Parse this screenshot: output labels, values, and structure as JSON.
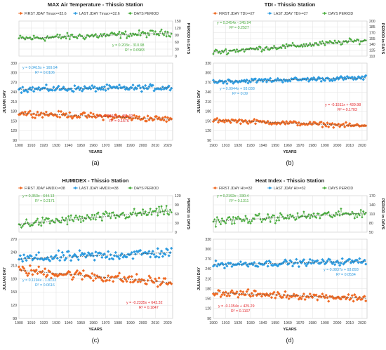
{
  "colors": {
    "first": "#ef6a24",
    "last": "#2d9be0",
    "days": "#4aac3e",
    "grid": "#e2e2e2",
    "trend": "#555555",
    "eq_red": "#e3262b"
  },
  "chart_data": [
    {
      "type": "scatter",
      "title": "MAX Air Temperature - Thissio Station",
      "caption": "(a)",
      "xlabel": "YEARS",
      "ylabel_left": "JULIAN DAY",
      "ylabel_right": "PERIOD in DAYS",
      "legend": [
        "FIRST JDAY Tmax>=32.6",
        "LAST JDAY Tmax>=32.6",
        "DAYS PERIOD"
      ],
      "x_ticks": [
        "1900",
        "1910",
        "1920",
        "1930",
        "1940",
        "1950",
        "1960",
        "1970",
        "1980",
        "1990",
        "2000",
        "2010",
        "2020"
      ],
      "xlim": [
        1900,
        2024
      ],
      "days_ylim": [
        0,
        150
      ],
      "days_ticks": [
        "0",
        "30",
        "60",
        "90",
        "120",
        "150"
      ],
      "jday_ylim": [
        90,
        330
      ],
      "jday_ticks": [
        "90",
        "120",
        "150",
        "180",
        "210",
        "240",
        "270",
        "300",
        "330"
      ],
      "days_trend": [
        0.203,
        -310.98
      ],
      "days_eq": "y = 0.203x - 310.98",
      "days_r2": "R² = 0.0983",
      "last_trend": [
        0.0415,
        169.94
      ],
      "last_eq": "y = 0.0415x + 169.94",
      "last_r2": "R² = 0.0106",
      "first_trend": [
        -0.1616,
        481.93
      ],
      "first_eq": "y = -0.1616x + 481.93",
      "first_r2": "R² = 0.1576",
      "noise": [
        22,
        14,
        14
      ]
    },
    {
      "type": "scatter",
      "title": "TDI - Thissio Station",
      "caption": "(b)",
      "xlabel": "YEARS",
      "ylabel_left": "JULIAN DAY",
      "ylabel_right": "PERIOD in DAYS",
      "legend": [
        "FIRST JDAY TDI>=27",
        "LAST JDAY TDI>=27",
        "DAYS PERIOD"
      ],
      "x_ticks": [
        "1900",
        "1910",
        "1920",
        "1930",
        "1940",
        "1950",
        "1960",
        "1970",
        "1980",
        "1990",
        "2000",
        "2010",
        "2020"
      ],
      "xlim": [
        1900,
        2024
      ],
      "days_ylim": [
        110,
        200
      ],
      "days_ticks": [
        "110",
        "125",
        "140",
        "155",
        "170",
        "185",
        "200"
      ],
      "jday_ylim": [
        90,
        330
      ],
      "jday_ticks": [
        "90",
        "120",
        "150",
        "180",
        "210",
        "240",
        "270",
        "300",
        "330"
      ],
      "days_trend": [
        0.2454,
        -345.94
      ],
      "days_eq": "y = 0.2454x - 345.94",
      "days_r2": "R² = 0.2527",
      "last_trend": [
        0.0944,
        93.038
      ],
      "last_eq": "y = 0.0944x + 93.038",
      "last_r2": "R² = 0.09",
      "first_trend": [
        -0.1511,
        439.98
      ],
      "first_eq": "y = -0.1511x + 439.98",
      "first_r2": "R² = 0.1703",
      "noise": [
        10,
        10,
        10
      ]
    },
    {
      "type": "scatter",
      "title": "HUMIDEX - Thissio Station",
      "caption": "(c)",
      "xlabel": "YEARS",
      "ylabel_left": "JULIAN DAY",
      "ylabel_right": "PERIOD in DAYS",
      "legend": [
        "FIRST JDAY HMDX>=38",
        "LAST JDAY HMDX>=38",
        "DAYS PERIOD"
      ],
      "x_ticks": [
        "1900",
        "1910",
        "1920",
        "1930",
        "1940",
        "1950",
        "1960",
        "1970",
        "1980",
        "1990",
        "2000",
        "2010",
        "2020"
      ],
      "xlim": [
        1900,
        2024
      ],
      "days_ylim": [
        0,
        120
      ],
      "days_ticks": [
        "0",
        "30",
        "60",
        "90",
        "120"
      ],
      "jday_ylim": [
        90,
        270
      ],
      "jday_ticks": [
        "90",
        "120",
        "150",
        "180",
        "210",
        "240",
        "270"
      ],
      "days_trend": [
        0.353,
        -644.13
      ],
      "days_eq": "y = 0.353x - 644.13",
      "days_r2": "R² = 0.2171",
      "last_trend": [
        0.1194,
        -1.8133
      ],
      "last_eq": "y = 0.1194x - 1.8133",
      "last_r2": "R² = 0.0616",
      "first_trend": [
        -0.2335,
        643.32
      ],
      "first_eq": "y = -0.2335x + 643.32",
      "first_r2": "R² = 0.1847",
      "noise": [
        24,
        18,
        18
      ]
    },
    {
      "type": "scatter",
      "title": "Heat Index - Thissio Station",
      "caption": "(d)",
      "xlabel": "YEARS",
      "ylabel_left": "JULIAN DAY",
      "ylabel_right": "PERIOD in DAYS",
      "legend": [
        "FIRST JDAY HI>=32",
        "LAST JDAY HI>=32",
        "DAYS PERIOD"
      ],
      "x_ticks": [
        "1900",
        "1910",
        "1920",
        "1930",
        "1940",
        "1950",
        "1960",
        "1970",
        "1980",
        "1990",
        "2000",
        "2010",
        "2020"
      ],
      "xlim": [
        1900,
        2024
      ],
      "days_ylim": [
        50,
        170
      ],
      "days_ticks": [
        "50",
        "80",
        "110",
        "140",
        "170"
      ],
      "jday_ylim": [
        90,
        330
      ],
      "jday_ticks": [
        "90",
        "120",
        "150",
        "180",
        "210",
        "240",
        "270",
        "300",
        "330"
      ],
      "days_trend": [
        0.2192,
        -330.4
      ],
      "days_eq": "y = 0.2192x - 330.4",
      "days_r2": "R² = 0.1311",
      "last_trend": [
        0.0837,
        93.893
      ],
      "last_eq": "y = 0.0837x + 93.893",
      "last_r2": "R² = 0.0534",
      "first_trend": [
        -0.1354,
        425.29
      ],
      "first_eq": "y = -0.1354x + 425.29",
      "first_r2": "R² = 0.1107",
      "noise": [
        22,
        14,
        16
      ]
    }
  ]
}
